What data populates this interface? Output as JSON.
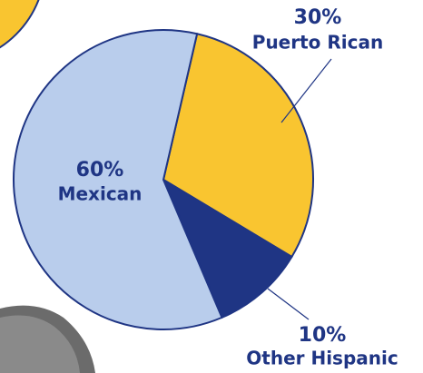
{
  "chart_data": {
    "type": "pie",
    "categories": [
      "Puerto Rican",
      "Other Hispanic",
      "Mexican"
    ],
    "values": [
      30,
      10,
      60
    ],
    "value_labels": [
      "30%",
      "10%",
      "60%"
    ],
    "colors": [
      "#f9c530",
      "#1f3584",
      "#b9cdec"
    ]
  }
}
